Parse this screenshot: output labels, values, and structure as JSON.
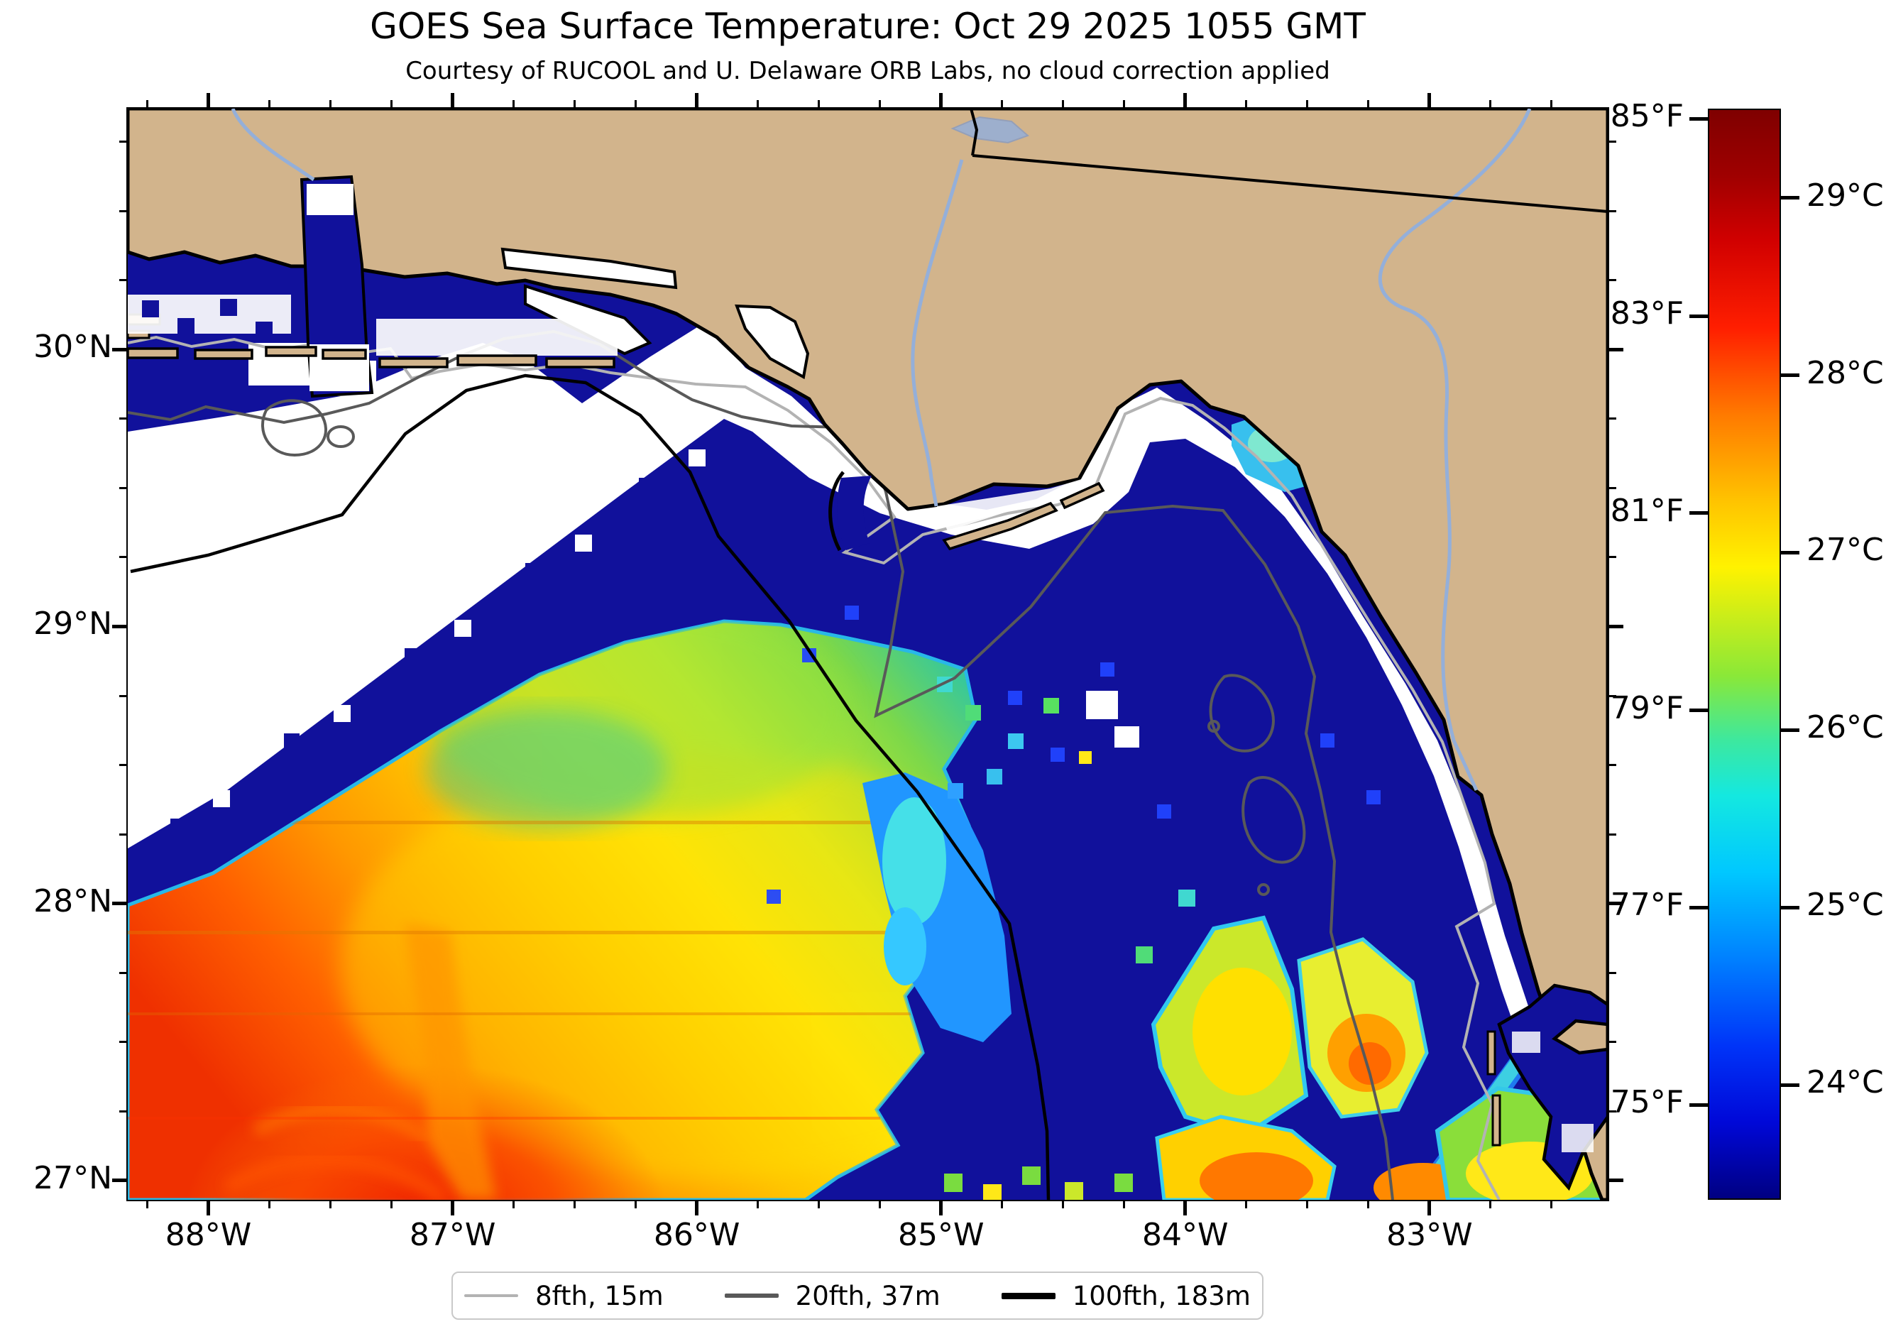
{
  "title": "GOES Sea Surface Temperature: Oct 29 2025 1055 GMT",
  "subtitle": "Courtesy of RUCOOL and U. Delaware ORB Labs, no cloud correction applied",
  "axes": {
    "lat_ticks": [
      {
        "label": "30°N",
        "deg": 30
      },
      {
        "label": "29°N",
        "deg": 29
      },
      {
        "label": "28°N",
        "deg": 28
      },
      {
        "label": "27°N",
        "deg": 27
      }
    ],
    "lon_ticks": [
      {
        "label": "88°W",
        "deg": -88
      },
      {
        "label": "87°W",
        "deg": -87
      },
      {
        "label": "86°W",
        "deg": -86
      },
      {
        "label": "85°W",
        "deg": -85
      },
      {
        "label": "84°W",
        "deg": -84
      },
      {
        "label": "83°W",
        "deg": -83
      }
    ],
    "lat_range": [
      26.93,
      30.87
    ],
    "lon_range": [
      -88.33,
      -82.27
    ],
    "minor_step_deg": 0.25
  },
  "colorbar": {
    "fahrenheit_ticks": [
      {
        "label": "85°F",
        "value": 85
      },
      {
        "label": "83°F",
        "value": 83
      },
      {
        "label": "81°F",
        "value": 81
      },
      {
        "label": "79°F",
        "value": 79
      },
      {
        "label": "77°F",
        "value": 77
      },
      {
        "label": "75°F",
        "value": 75
      }
    ],
    "celsius_ticks": [
      {
        "label": "29°C",
        "value": 29
      },
      {
        "label": "28°C",
        "value": 28
      },
      {
        "label": "27°C",
        "value": 27
      },
      {
        "label": "26°C",
        "value": 26
      },
      {
        "label": "25°C",
        "value": 25
      },
      {
        "label": "24°C",
        "value": 24
      }
    ],
    "range_f": [
      74.05,
      85.09
    ],
    "colormap": "jet"
  },
  "legend": {
    "items": [
      {
        "label": "8fth, 15m",
        "color": "#b3b3b3",
        "thickness": 4
      },
      {
        "label": "20fth, 37m",
        "color": "#595959",
        "thickness": 6
      },
      {
        "label": "100fth, 183m",
        "color": "#000000",
        "thickness": 9
      }
    ]
  },
  "map": {
    "palette": {
      "land": "#d2b48c",
      "sea": "#11119b",
      "cloud": "#ffffff",
      "river": "#94afd9",
      "coast": "#000000",
      "contour_8fth": "#b3b3b3",
      "contour_20fth": "#595959",
      "contour_100fth": "#000000",
      "warm_edge": "#28b8e8"
    }
  }
}
